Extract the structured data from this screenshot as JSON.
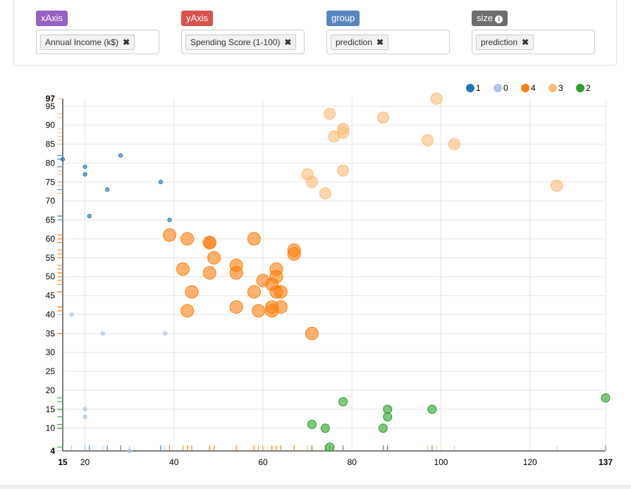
{
  "controls": {
    "xaxis": {
      "tag": "xAxis",
      "value": "Annual Income (k$)",
      "color": "#9561c2"
    },
    "yaxis": {
      "tag": "yAxis",
      "value": "Spending Score (1-100)",
      "color": "#d9534f"
    },
    "group": {
      "tag": "group",
      "value": "prediction",
      "color": "#5a86c0"
    },
    "size": {
      "tag": "size",
      "value": "prediction",
      "color": "#6e6e6e"
    },
    "remove_glyph": "✖",
    "info_glyph": "i"
  },
  "chart_data": {
    "type": "scatter",
    "title": "",
    "xlabel": "Annual Income (k$)",
    "ylabel": "Spending Score (1-100)",
    "xlim": [
      15,
      137
    ],
    "ylim": [
      4,
      97
    ],
    "x_ticks": [
      15,
      20,
      40,
      60,
      80,
      100,
      120,
      137
    ],
    "y_ticks": [
      4,
      10,
      15,
      20,
      25,
      30,
      35,
      40,
      45,
      50,
      55,
      60,
      65,
      70,
      75,
      80,
      85,
      90,
      95,
      97
    ],
    "y_tick_labels": [
      "4",
      "10",
      "15",
      "20",
      "25",
      "30",
      "35",
      "40",
      "45",
      "50",
      "55",
      "60",
      "65",
      "70",
      "75",
      "80",
      "85",
      "90",
      "95",
      "97"
    ],
    "x_bold_ticks": [
      15,
      137
    ],
    "y_bold_ticks": [
      4,
      97
    ],
    "grid": true,
    "legend_position": "top-right",
    "rug_plots": true,
    "series": [
      {
        "name": "1",
        "color": "#1f77b4",
        "size": 2.6,
        "points": [
          [
            15,
            81
          ],
          [
            20,
            79
          ],
          [
            20,
            77
          ],
          [
            21,
            66
          ],
          [
            25,
            73
          ],
          [
            28,
            82
          ],
          [
            37,
            75
          ],
          [
            39,
            65
          ]
        ]
      },
      {
        "name": "0",
        "color": "#aec7e8",
        "size": 2.6,
        "points": [
          [
            17,
            40
          ],
          [
            20,
            15
          ],
          [
            20,
            13
          ],
          [
            24,
            35
          ],
          [
            30,
            4
          ],
          [
            38,
            35
          ]
        ]
      },
      {
        "name": "4",
        "color": "#ff7f0e",
        "size": 9,
        "points": [
          [
            39,
            61
          ],
          [
            42,
            52
          ],
          [
            43,
            60
          ],
          [
            43,
            41
          ],
          [
            44,
            46
          ],
          [
            48,
            59
          ],
          [
            48,
            59
          ],
          [
            48,
            51
          ],
          [
            49,
            55
          ],
          [
            54,
            53
          ],
          [
            54,
            51
          ],
          [
            54,
            42
          ],
          [
            58,
            60
          ],
          [
            58,
            46
          ],
          [
            59,
            41
          ],
          [
            60,
            49
          ],
          [
            62,
            48
          ],
          [
            62,
            42
          ],
          [
            62,
            41
          ],
          [
            63,
            52
          ],
          [
            63,
            50
          ],
          [
            63,
            46
          ],
          [
            64,
            46
          ],
          [
            64,
            42
          ],
          [
            67,
            57
          ],
          [
            67,
            56
          ],
          [
            71,
            35
          ]
        ]
      },
      {
        "name": "3",
        "color": "#ffbb78",
        "size": 8,
        "points": [
          [
            70,
            77
          ],
          [
            71,
            75
          ],
          [
            74,
            72
          ],
          [
            75,
            93
          ],
          [
            76,
            87
          ],
          [
            78,
            89
          ],
          [
            78,
            88
          ],
          [
            78,
            78
          ],
          [
            87,
            92
          ],
          [
            97,
            86
          ],
          [
            99,
            97
          ],
          [
            103,
            85
          ],
          [
            126,
            74
          ]
        ]
      },
      {
        "name": "2",
        "color": "#2ca02c",
        "size": 6,
        "points": [
          [
            71,
            11
          ],
          [
            74,
            10
          ],
          [
            75,
            5
          ],
          [
            78,
            17
          ],
          [
            87,
            10
          ],
          [
            88,
            15
          ],
          [
            88,
            13
          ],
          [
            98,
            15
          ],
          [
            137,
            18
          ]
        ]
      }
    ],
    "legend": [
      "1",
      "0",
      "4",
      "3",
      "2"
    ]
  }
}
